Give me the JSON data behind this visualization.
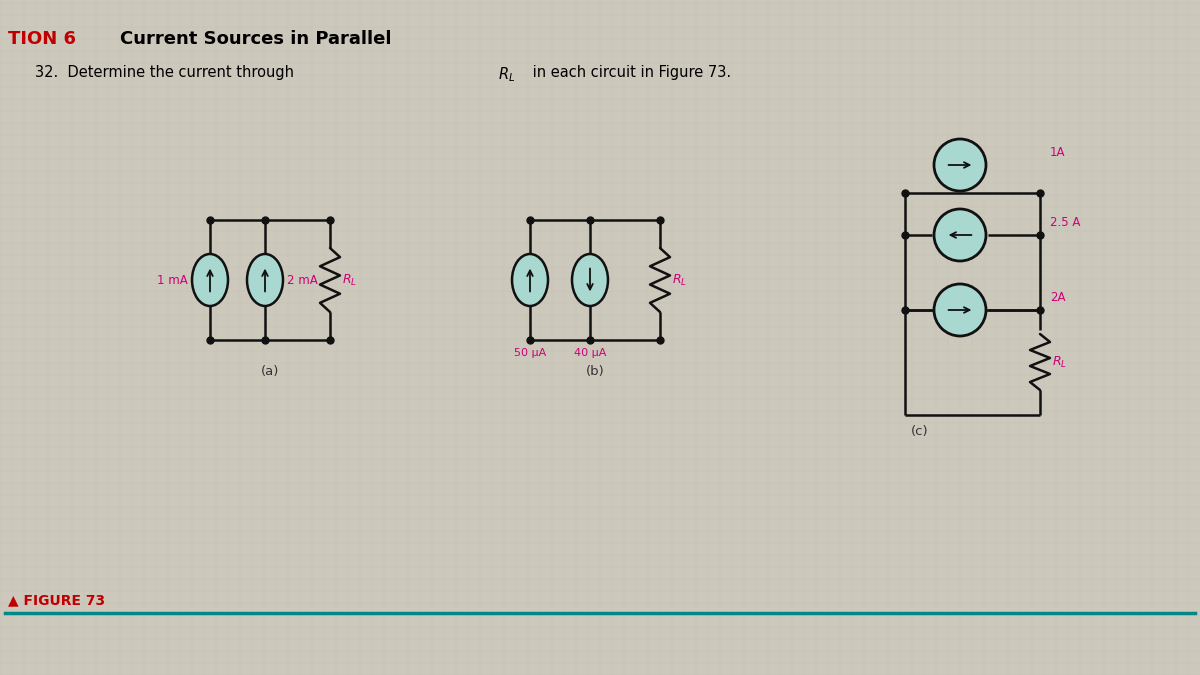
{
  "bg_color": "#cdc8bc",
  "title_section": "TION 6",
  "title_section_color": "#c00000",
  "title_text": "Current Sources in Parallel",
  "title_color": "#000000",
  "figure_label": "▲ FIGURE 73",
  "figure_label_color": "#c00000",
  "circuit_a_label": "(a)",
  "circuit_b_label": "(b)",
  "circuit_c_label": "(c)",
  "source_fill": "#a8d8d0",
  "source_edge": "#111111",
  "wire_color": "#111111",
  "label_color_pink": "#cc0077",
  "label_color_black": "#333333",
  "line_color": "#008888"
}
